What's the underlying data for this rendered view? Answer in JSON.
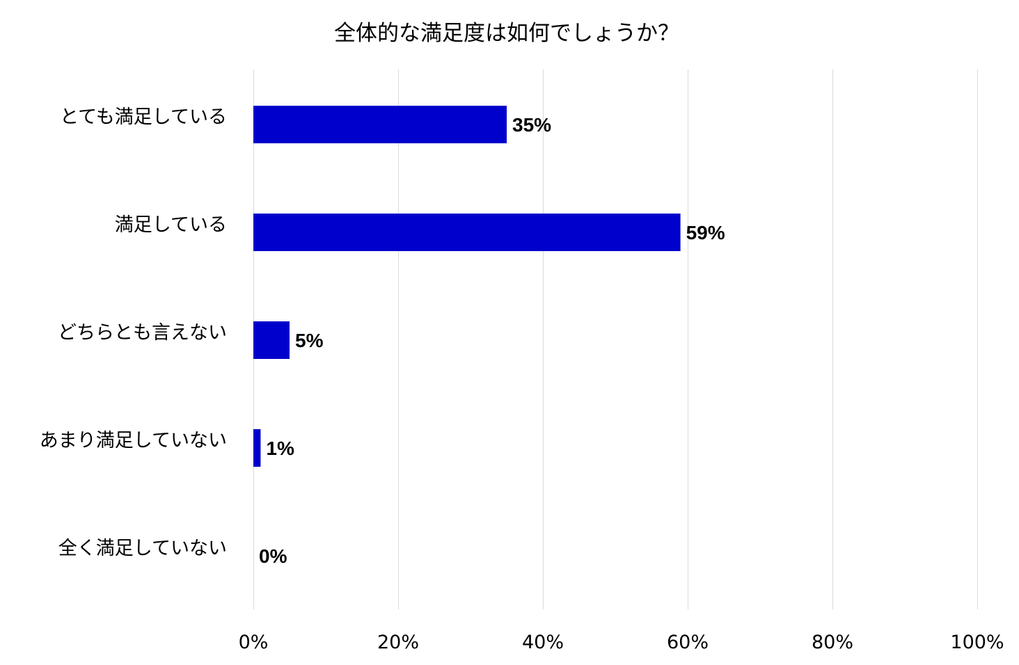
{
  "chart_data": {
    "type": "bar",
    "orientation": "horizontal",
    "title": "全体的な満足度は如何でしょうか？",
    "categories": [
      "とても満足している",
      "満足している",
      "どちらとも言えない",
      "あまり満足していない",
      "全く満足していない"
    ],
    "series": [
      {
        "values": [
          35,
          59,
          5,
          1,
          0
        ]
      }
    ],
    "value_labels": [
      "35%",
      "59%",
      "5%",
      "1%",
      "0%"
    ],
    "xlim": [
      0,
      100
    ],
    "xticks": [
      0,
      20,
      40,
      60,
      80,
      100
    ],
    "xtick_labels": [
      "0%",
      "20%",
      "40%",
      "60%",
      "80%",
      "100%"
    ],
    "xlabel": "",
    "ylabel": "",
    "grid": "vertical",
    "legend": "none",
    "bar_color": "#0000cc"
  }
}
